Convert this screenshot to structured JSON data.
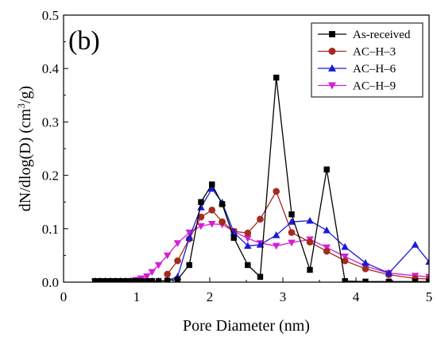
{
  "chart_data": {
    "type": "line",
    "panel_label": "(b)",
    "xlabel": "Pore Diameter (nm)",
    "ylabel": "dN/dlog(D) (cm³/g)",
    "ylabel_parts": {
      "main": "dN/dlog(D) (cm",
      "sup": "3",
      "tail": "/g)"
    },
    "xlim": [
      0,
      5
    ],
    "ylim": [
      0,
      0.5
    ],
    "x_ticks": [
      "0",
      "1",
      "2",
      "3",
      "4",
      "5"
    ],
    "x_tick_values": [
      0,
      1,
      2,
      3,
      4,
      5
    ],
    "y_ticks": [
      "0.0",
      "0.1",
      "0.2",
      "0.3",
      "0.4",
      "0.5"
    ],
    "y_tick_values": [
      0,
      0.1,
      0.2,
      0.3,
      0.4,
      0.5
    ],
    "legend_position": "top-right",
    "series": [
      {
        "name": "As-received",
        "color": "#000000",
        "marker": "square",
        "x": [
          0.43,
          0.5,
          0.57,
          0.64,
          0.71,
          0.78,
          0.85,
          0.92,
          0.99,
          1.06,
          1.14,
          1.21,
          1.3,
          1.42,
          1.56,
          1.72,
          1.88,
          2.03,
          2.17,
          2.33,
          2.52,
          2.69,
          2.91,
          3.12,
          3.37,
          3.6,
          3.85,
          4.13,
          4.45,
          4.81,
          5.0
        ],
        "y": [
          0.002,
          0.002,
          0.002,
          0.002,
          0.002,
          0.002,
          0.002,
          0.002,
          0.002,
          0.002,
          0.002,
          0.002,
          0.002,
          0.003,
          0.005,
          0.032,
          0.15,
          0.183,
          0.146,
          0.083,
          0.032,
          0.01,
          0.383,
          0.127,
          0.023,
          0.211,
          0.002,
          0.001,
          0.001,
          0.001,
          0.001
        ]
      },
      {
        "name": "AC–H–3",
        "color": "#a52a1e",
        "marker": "circle",
        "x": [
          1.42,
          1.56,
          1.72,
          1.88,
          2.03,
          2.17,
          2.33,
          2.52,
          2.69,
          2.91,
          3.12,
          3.37,
          3.6,
          3.85,
          4.13,
          4.45,
          4.81,
          5.0
        ],
        "y": [
          0.015,
          0.04,
          0.081,
          0.122,
          0.135,
          0.113,
          0.095,
          0.092,
          0.118,
          0.17,
          0.093,
          0.075,
          0.058,
          0.04,
          0.025,
          0.014,
          0.007,
          0.006
        ]
      },
      {
        "name": "AC–H–6",
        "color": "#1a1adb",
        "marker": "triangle-up",
        "x": [
          0.43,
          0.5,
          0.57,
          0.64,
          0.71,
          0.78,
          0.85,
          0.92,
          0.99,
          1.06,
          1.14,
          1.21,
          1.3,
          1.42,
          1.56,
          1.72,
          1.88,
          2.03,
          2.17,
          2.33,
          2.52,
          2.69,
          2.91,
          3.12,
          3.37,
          3.6,
          3.85,
          4.13,
          4.45,
          4.81,
          5.0
        ],
        "y": [
          0.002,
          0.002,
          0.002,
          0.002,
          0.002,
          0.002,
          0.002,
          0.002,
          0.002,
          0.002,
          0.002,
          0.002,
          0.002,
          0.003,
          0.01,
          0.083,
          0.14,
          0.175,
          0.149,
          0.093,
          0.068,
          0.07,
          0.088,
          0.113,
          0.115,
          0.097,
          0.066,
          0.036,
          0.017,
          0.07,
          0.038
        ]
      },
      {
        "name": "AC–H–9",
        "color": "#d41fd4",
        "marker": "triangle-down",
        "x": [
          0.43,
          0.5,
          0.57,
          0.64,
          0.71,
          0.78,
          0.85,
          0.92,
          0.99,
          1.06,
          1.14,
          1.21,
          1.3,
          1.42,
          1.56,
          1.72,
          1.88,
          2.03,
          2.17,
          2.33,
          2.52,
          2.69,
          2.91,
          3.12,
          3.37,
          3.6,
          3.85,
          4.13,
          4.45,
          4.81,
          5.0
        ],
        "y": [
          0.001,
          0.001,
          0.001,
          0.001,
          0.001,
          0.001,
          0.001,
          0.002,
          0.004,
          0.007,
          0.011,
          0.019,
          0.032,
          0.05,
          0.073,
          0.093,
          0.105,
          0.109,
          0.108,
          0.095,
          0.082,
          0.073,
          0.068,
          0.074,
          0.08,
          0.065,
          0.048,
          0.03,
          0.017,
          0.012,
          0.01
        ]
      }
    ]
  }
}
